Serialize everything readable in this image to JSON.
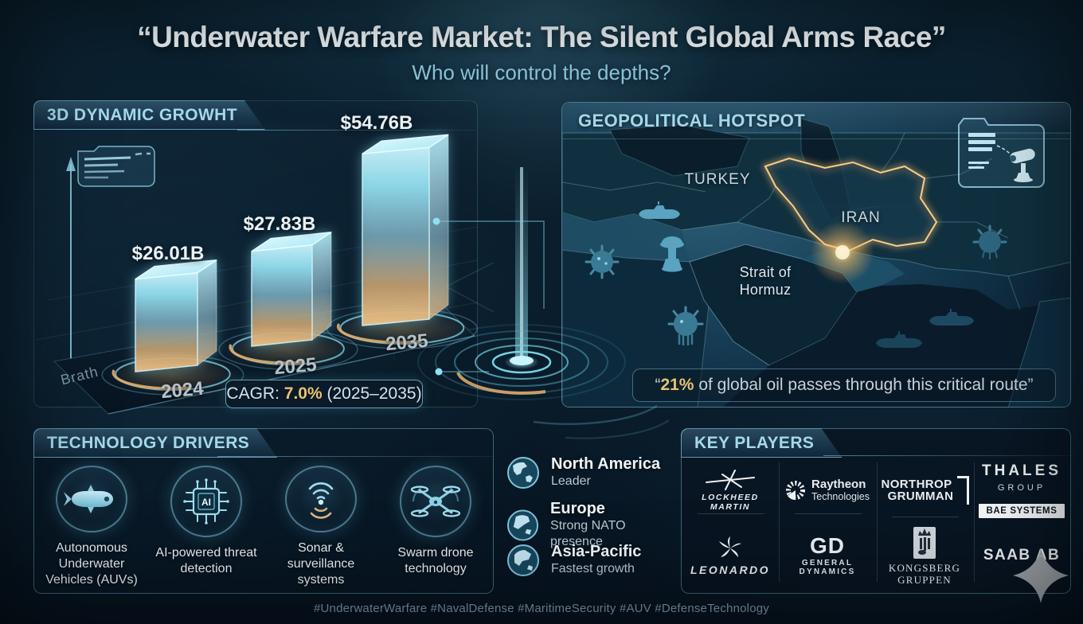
{
  "page": {
    "title": "“Underwater Warfare Market: The Silent Global Arms Race”",
    "subtitle": "Who will control the depths?",
    "hashtags": "#UnderwaterWarfare #NavalDefense #MaritimeSecurity #AUV #DefenseTechnology"
  },
  "chart_panel": {
    "header": "3D DYNAMIC GROWHT",
    "axis_label": "Brath",
    "cagr": {
      "prefix": "CAGR: ",
      "value": "7.0%",
      "suffix": " (2025–2035)"
    }
  },
  "chart_data": {
    "type": "bar",
    "title": "3D DYNAMIC GROWHT",
    "categories": [
      "2024",
      "2025",
      "2035"
    ],
    "values": [
      26.01,
      27.83,
      54.76
    ],
    "value_labels": [
      "$26.01B",
      "$27.83B",
      "$54.76B"
    ],
    "unit": "USD billions",
    "ylim": [
      0,
      60
    ],
    "xlabel": "Brath",
    "ylabel": "",
    "legend": false,
    "annotations": [
      "CAGR: 7.0% (2025–2035)"
    ]
  },
  "map_panel": {
    "header": "GEOPOLITICAL HOTSPOT",
    "labels": {
      "turkey": "TURKEY",
      "iran": "IRAN",
      "strait_line1": "Strait of",
      "strait_line2": "Hormuz"
    },
    "quote": {
      "open": "“",
      "highlight": "21%",
      "rest": " of global oil passes through this critical route”"
    }
  },
  "tech_panel": {
    "header": "TECHNOLOGY DRIVERS",
    "items": [
      {
        "icon": "auv-submarine-icon",
        "label": "Autonomous Underwater Vehicles (AUVs)"
      },
      {
        "icon": "ai-chip-icon",
        "label": "AI-powered threat detection"
      },
      {
        "icon": "sonar-waves-icon",
        "label": "Sonar & surveillance systems"
      },
      {
        "icon": "swarm-drone-icon",
        "label": "Swarm drone technology"
      }
    ]
  },
  "regions": [
    {
      "name": "North America",
      "detail": "Leader"
    },
    {
      "name": "Europe",
      "detail": "Strong NATO presence"
    },
    {
      "name": "Asia-Pacific",
      "detail": "Fastest growth"
    }
  ],
  "key_players_panel": {
    "header": "KEY PLAYERS",
    "companies": [
      {
        "name": "Lockheed Martin",
        "logo_text": "LOCKHEED MARTIN"
      },
      {
        "name": "Raytheon Technologies",
        "logo_line1": "Raytheon",
        "logo_line2": "Technologies"
      },
      {
        "name": "Northrop Grumman",
        "logo_line1": "NORTHROP",
        "logo_line2": "GRUMMAN"
      },
      {
        "name": "Thales Group",
        "logo_line1": "THALES",
        "logo_line2": "GROUP"
      },
      {
        "name": "BAE Systems",
        "logo_text": "BAE SYSTEMS"
      },
      {
        "name": "Leonardo",
        "logo_text": "LEONARDO"
      },
      {
        "name": "General Dynamics",
        "logo_big": "GD",
        "logo_line1": "GENERAL",
        "logo_line2": "DYNAMICS"
      },
      {
        "name": "Kongsberg Gruppen",
        "logo_line1": "KONGSBERG",
        "logo_line2": "GRUPPEN"
      },
      {
        "name": "Saab AB",
        "logo_text": "SAAB AB"
      }
    ]
  },
  "colors": {
    "accent_cyan": "#7fd0e6",
    "accent_gold": "#e9c270",
    "panel_border": "#82c6e0",
    "background": "#0a1d2c",
    "bar_top": "#c8f1fa",
    "bar_bottom": "#eec285"
  }
}
